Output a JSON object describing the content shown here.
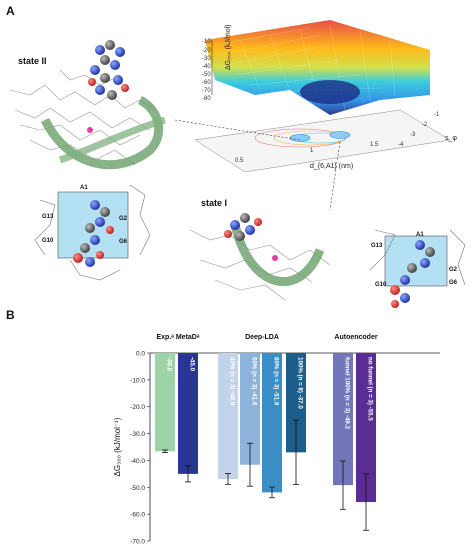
{
  "panel_a": {
    "label": "A",
    "state_ii": "state II",
    "state_i": "state I",
    "fes": {
      "z_label": "ΔG₂₀₀ (kJ/mol)",
      "z_ticks": [
        "-10",
        "-20",
        "-30",
        "-40",
        "-50",
        "-60",
        "-70",
        "-80"
      ],
      "x_label": "d_{6,A1} (nm)",
      "x_ticks": [
        "0.5",
        "1",
        "1.5"
      ],
      "y_label": "s_φ",
      "y_ticks": [
        "-4",
        "-3",
        "-2",
        "-1"
      ]
    },
    "quadruplex_left": {
      "a1": "A1",
      "g13": "G13",
      "g2": "G2",
      "g10": "G10",
      "g6": "G6"
    },
    "quadruplex_right": {
      "g13": "G13",
      "a1": "A1",
      "g2": "G2",
      "g10": "G10",
      "g6": "G6"
    }
  },
  "panel_b": {
    "label": "B"
  },
  "chart_data": {
    "type": "bar",
    "ylabel": "ΔG₃₀₀ (kJ/mol⁻¹)",
    "ylim": [
      -70,
      0
    ],
    "yticks": [
      "0.0",
      "-10.0",
      "-20.0",
      "-30.0",
      "-40.0",
      "-50.0",
      "-60.0",
      "-70.0"
    ],
    "groups": [
      {
        "label": "Exp.ᵃ MetaDᵃ"
      },
      {
        "label": "Deep-LDA"
      },
      {
        "label": "Autoencoder"
      }
    ],
    "bars": [
      {
        "label": "-36.6",
        "value": -36.6,
        "error": 0.5,
        "color": "#9ed3a8",
        "label_color": "#ffffff"
      },
      {
        "label": "-45.0",
        "value": -45.0,
        "error": 3.0,
        "color": "#283593",
        "label_color": "#ffffff"
      },
      {
        "label": "40% (n = 3) -46.9",
        "value": -46.9,
        "error": 2.0,
        "color": "#c3d3ea",
        "label_color": "#ffffff"
      },
      {
        "label": "50% (n = 3) -41.6",
        "value": -41.6,
        "error": 8.0,
        "color": "#8eb3db",
        "label_color": "#ffffff"
      },
      {
        "label": "60% (n = 3) -51.9",
        "value": -51.9,
        "error": 2.0,
        "color": "#3b8dc5",
        "label_color": "#ffffff"
      },
      {
        "label": "100% (n = 8) -37.0",
        "value": -37.0,
        "error": 12.0,
        "color": "#1c5d8c",
        "label_color": "#ffffff"
      },
      {
        "label": "funnel 100% (n = 3) -49.2",
        "value": -49.2,
        "error": 9.0,
        "color": "#7276b8",
        "label_color": "#ffffff"
      },
      {
        "label": "no funnel (n = 3) -55.5",
        "value": -55.5,
        "error": 10.5,
        "color": "#5b2d93",
        "label_color": "#ffffff"
      }
    ]
  }
}
